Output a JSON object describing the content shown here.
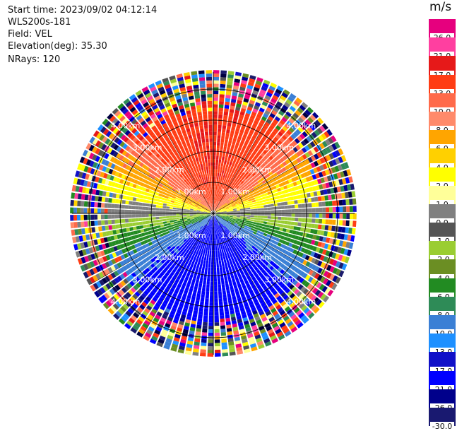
{
  "header": {
    "start_time": "Start time: 2023/09/02 04:12:14",
    "instrument": "WLS200s-181",
    "field": "Field: VEL",
    "elevation": "Elevation(deg): 35.30",
    "nrays": "NRays: 120"
  },
  "colorbar": {
    "unit": "m/s",
    "colors": [
      "#e6007e",
      "#ff3fa0",
      "#e61919",
      "#ff3c14",
      "#ff6a4a",
      "#ff8a6a",
      "#ffa500",
      "#ffd000",
      "#ffff00",
      "#ffff99",
      "#808080",
      "#555555",
      "#9acd32",
      "#6b8e23",
      "#228b22",
      "#2e8b57",
      "#3a7fd5",
      "#1e90ff",
      "#1010c8",
      "#0000ff",
      "#00008b",
      "#191970",
      "#000040",
      "#1a1a6b"
    ],
    "ticks": [
      "26.0",
      "21.0",
      "17.0",
      "13.0",
      "10.0",
      "8.0",
      "6.0",
      "4.0",
      "2.0",
      "1.0",
      "0.0",
      "-1.0",
      "-2.0",
      "-4.0",
      "-6.0",
      "-8.0",
      "-10.0",
      "-13.0",
      "-17.0",
      "-21.0",
      "-26.0",
      "-30.0"
    ]
  },
  "chart_data": {
    "type": "heatmap",
    "projection": "polar PPI",
    "field": "VEL",
    "nrays": 120,
    "elevation_deg": 35.3,
    "range_ring_labels": [
      "1.00km",
      "2.00km",
      "3.00km",
      "4.00km"
    ],
    "sectors": [
      {
        "azimuth_from": 270,
        "azimuth_to": 90,
        "inner_km": 0,
        "outer_km": 3.2,
        "velocity_ms": 13,
        "note": "north half receding (red/orange)"
      },
      {
        "azimuth_from": 90,
        "azimuth_to": 270,
        "inner_km": 0,
        "outer_km": 3.2,
        "velocity_ms": -13,
        "note": "south half approaching (blue)"
      }
    ],
    "noise_beyond_km": 3.2
  }
}
